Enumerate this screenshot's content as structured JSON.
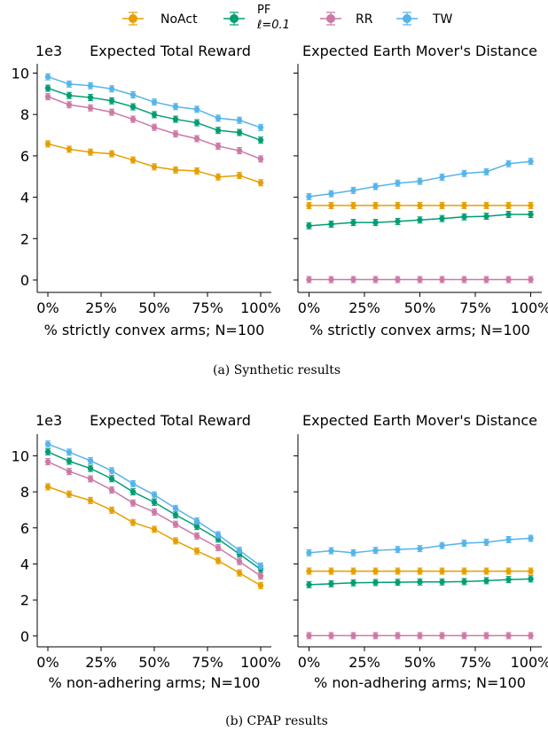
{
  "legend": {
    "items": [
      {
        "label": "NoAct",
        "color": "#E69F00"
      },
      {
        "label": "PF",
        "sublabel": "ℓ=0.1",
        "color": "#009E73"
      },
      {
        "label": "RR",
        "color": "#CC79A7"
      },
      {
        "label": "TW",
        "color": "#56B4E9"
      }
    ]
  },
  "captions": {
    "a": "(a)  Synthetic results",
    "b": "(b)  CPAP results"
  },
  "chart_data": [
    {
      "type": "line",
      "title": "Expected Total Reward",
      "xlabel": "% strictly convex arms; N=100",
      "ylabel": "",
      "y_multiplier_label": "1e3",
      "x": [
        0,
        10,
        20,
        30,
        40,
        50,
        60,
        70,
        80,
        90,
        100
      ],
      "xticks": [
        0,
        25,
        50,
        75,
        100
      ],
      "xtick_labels": [
        "0%",
        "25%",
        "50%",
        "75%",
        "100%"
      ],
      "xlim": [
        -5,
        105
      ],
      "ylim": [
        -0.6,
        10.45
      ],
      "yticks": [
        0,
        2,
        4,
        6,
        8,
        10
      ],
      "series": [
        {
          "name": "NoAct",
          "color": "#E69F00",
          "values": [
            6.58,
            6.32,
            6.18,
            6.1,
            5.8,
            5.47,
            5.32,
            5.27,
            4.98,
            5.05,
            4.7
          ]
        },
        {
          "name": "PF",
          "color": "#009E73",
          "values": [
            9.27,
            8.92,
            8.82,
            8.66,
            8.37,
            7.99,
            7.77,
            7.6,
            7.23,
            7.13,
            6.76
          ]
        },
        {
          "name": "RR",
          "color": "#CC79A7",
          "values": [
            8.86,
            8.47,
            8.32,
            8.11,
            7.77,
            7.38,
            7.06,
            6.83,
            6.47,
            6.25,
            5.85
          ]
        },
        {
          "name": "TW",
          "color": "#56B4E9",
          "values": [
            9.82,
            9.47,
            9.39,
            9.24,
            8.95,
            8.6,
            8.38,
            8.25,
            7.82,
            7.72,
            7.37
          ]
        }
      ]
    },
    {
      "type": "line",
      "title": "Expected Earth Mover's Distance",
      "xlabel": "% strictly convex arms; N=100",
      "ylabel": "",
      "x": [
        0,
        10,
        20,
        30,
        40,
        50,
        60,
        70,
        80,
        90,
        100
      ],
      "xticks": [
        0,
        25,
        50,
        75,
        100
      ],
      "xtick_labels": [
        "0%",
        "25%",
        "50%",
        "75%",
        "100%"
      ],
      "xlim": [
        -5,
        105
      ],
      "ylim": [
        -0.6,
        10.45
      ],
      "series": [
        {
          "name": "NoAct",
          "color": "#E69F00",
          "values": [
            3.6,
            3.6,
            3.6,
            3.6,
            3.6,
            3.6,
            3.6,
            3.6,
            3.6,
            3.6,
            3.6
          ]
        },
        {
          "name": "PF",
          "color": "#009E73",
          "values": [
            2.62,
            2.7,
            2.78,
            2.78,
            2.83,
            2.9,
            2.97,
            3.05,
            3.08,
            3.17,
            3.17
          ]
        },
        {
          "name": "RR",
          "color": "#CC79A7",
          "values": [
            0.02,
            0.02,
            0.02,
            0.02,
            0.02,
            0.02,
            0.02,
            0.02,
            0.02,
            0.02,
            0.02
          ]
        },
        {
          "name": "TW",
          "color": "#56B4E9",
          "values": [
            4.03,
            4.17,
            4.33,
            4.52,
            4.68,
            4.77,
            4.97,
            5.15,
            5.23,
            5.62,
            5.73
          ]
        }
      ]
    },
    {
      "type": "line",
      "title": "Expected Total Reward",
      "xlabel": "% non-adhering arms; N=100",
      "ylabel": "",
      "y_multiplier_label": "1e3",
      "x": [
        0,
        10,
        20,
        30,
        40,
        50,
        60,
        70,
        80,
        90,
        100
      ],
      "xticks": [
        0,
        25,
        50,
        75,
        100
      ],
      "xtick_labels": [
        "0%",
        "25%",
        "50%",
        "75%",
        "100%"
      ],
      "xlim": [
        -5,
        105
      ],
      "ylim": [
        -0.6,
        11.2
      ],
      "yticks": [
        0,
        2,
        4,
        6,
        8,
        10
      ],
      "series": [
        {
          "name": "NoAct",
          "color": "#E69F00",
          "values": [
            8.28,
            7.87,
            7.52,
            6.98,
            6.3,
            5.92,
            5.28,
            4.72,
            4.18,
            3.5,
            2.8
          ]
        },
        {
          "name": "PF",
          "color": "#009E73",
          "values": [
            10.22,
            9.7,
            9.3,
            8.73,
            8.0,
            7.42,
            6.72,
            6.08,
            5.38,
            4.55,
            3.7
          ]
        },
        {
          "name": "RR",
          "color": "#CC79A7",
          "values": [
            9.67,
            9.13,
            8.72,
            8.1,
            7.38,
            6.88,
            6.2,
            5.55,
            4.9,
            4.13,
            3.33
          ]
        },
        {
          "name": "TW",
          "color": "#56B4E9",
          "values": [
            10.65,
            10.2,
            9.73,
            9.17,
            8.45,
            7.83,
            7.08,
            6.38,
            5.62,
            4.75,
            3.88
          ]
        }
      ]
    },
    {
      "type": "line",
      "title": "Expected Earth Mover's Distance",
      "xlabel": "% non-adhering arms; N=100",
      "ylabel": "",
      "x": [
        0,
        10,
        20,
        30,
        40,
        50,
        60,
        70,
        80,
        90,
        100
      ],
      "xticks": [
        0,
        25,
        50,
        75,
        100
      ],
      "xtick_labels": [
        "0%",
        "25%",
        "50%",
        "75%",
        "100%"
      ],
      "xlim": [
        -5,
        105
      ],
      "ylim": [
        -0.6,
        11.2
      ],
      "series": [
        {
          "name": "NoAct",
          "color": "#E69F00",
          "values": [
            3.6,
            3.6,
            3.6,
            3.6,
            3.6,
            3.6,
            3.6,
            3.6,
            3.6,
            3.6,
            3.6
          ]
        },
        {
          "name": "PF",
          "color": "#009E73",
          "values": [
            2.85,
            2.9,
            2.95,
            2.97,
            2.98,
            3.0,
            3.0,
            3.02,
            3.07,
            3.13,
            3.17
          ]
        },
        {
          "name": "RR",
          "color": "#CC79A7",
          "values": [
            0.02,
            0.02,
            0.02,
            0.02,
            0.02,
            0.02,
            0.02,
            0.02,
            0.02,
            0.02,
            0.02
          ]
        },
        {
          "name": "TW",
          "color": "#56B4E9",
          "values": [
            4.62,
            4.73,
            4.62,
            4.75,
            4.8,
            4.85,
            5.02,
            5.15,
            5.2,
            5.35,
            5.42
          ]
        }
      ]
    }
  ]
}
